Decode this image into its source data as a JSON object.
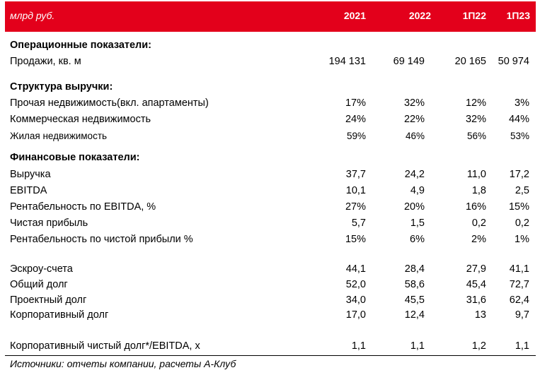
{
  "header": {
    "unit": "млрд руб.",
    "columns": [
      "2021",
      "2022",
      "1П22",
      "1П23"
    ]
  },
  "sections": {
    "operational": {
      "title": "Операционные показатели:",
      "rows": [
        {
          "label": "Продажи, кв. м",
          "values": [
            "194 131",
            "69 149",
            "20 165",
            "50 974"
          ]
        }
      ]
    },
    "revenue_structure": {
      "title": "Структура выручки:",
      "rows": [
        {
          "label": "Прочая недвижимость(вкл. апартаменты)",
          "values": [
            "17%",
            "32%",
            "12%",
            "3%"
          ]
        },
        {
          "label": "Коммерческая недвижимость",
          "values": [
            "24%",
            "22%",
            "32%",
            "44%"
          ]
        },
        {
          "label": "Жилая недвижимость",
          "values": [
            "59%",
            "46%",
            "56%",
            "53%"
          ]
        }
      ]
    },
    "financial": {
      "title": "Финансовые показатели:",
      "rows": [
        {
          "label": "Выручка",
          "values": [
            "37,7",
            "24,2",
            "11,0",
            "17,2"
          ]
        },
        {
          "label": "EBITDA",
          "values": [
            "10,1",
            "4,9",
            "1,8",
            "2,5"
          ]
        },
        {
          "label": "Рентабельность по EBITDA, %",
          "values": [
            "27%",
            "20%",
            "16%",
            "15%"
          ]
        },
        {
          "label": "Чистая прибыль",
          "values": [
            "5,7",
            "1,5",
            "0,2",
            "0,2"
          ]
        },
        {
          "label": "Рентабельность по чистой прибыли %",
          "values": [
            "15%",
            "6%",
            "2%",
            "1%"
          ]
        }
      ]
    },
    "debt": {
      "rows": [
        {
          "label": "Эскроу-счета",
          "values": [
            "44,1",
            "28,4",
            "27,9",
            "41,1"
          ]
        },
        {
          "label": "Общий долг",
          "values": [
            "52,0",
            "58,6",
            "45,4",
            "72,7"
          ]
        },
        {
          "label": "Проектный долг",
          "values": [
            "34,0",
            "45,5",
            "31,6",
            "62,4"
          ]
        },
        {
          "label": "Корпоративный долг",
          "values": [
            "17,0",
            "12,4",
            "13",
            "9,7"
          ]
        }
      ]
    },
    "ratio": {
      "rows": [
        {
          "label": "Корпоративный чистый долг*/EBITDA, x",
          "values": [
            "1,1",
            "1,1",
            "1,2",
            "1,1"
          ]
        }
      ]
    }
  },
  "source": "Источники: отчеты компании, расчеты А-Клуб"
}
